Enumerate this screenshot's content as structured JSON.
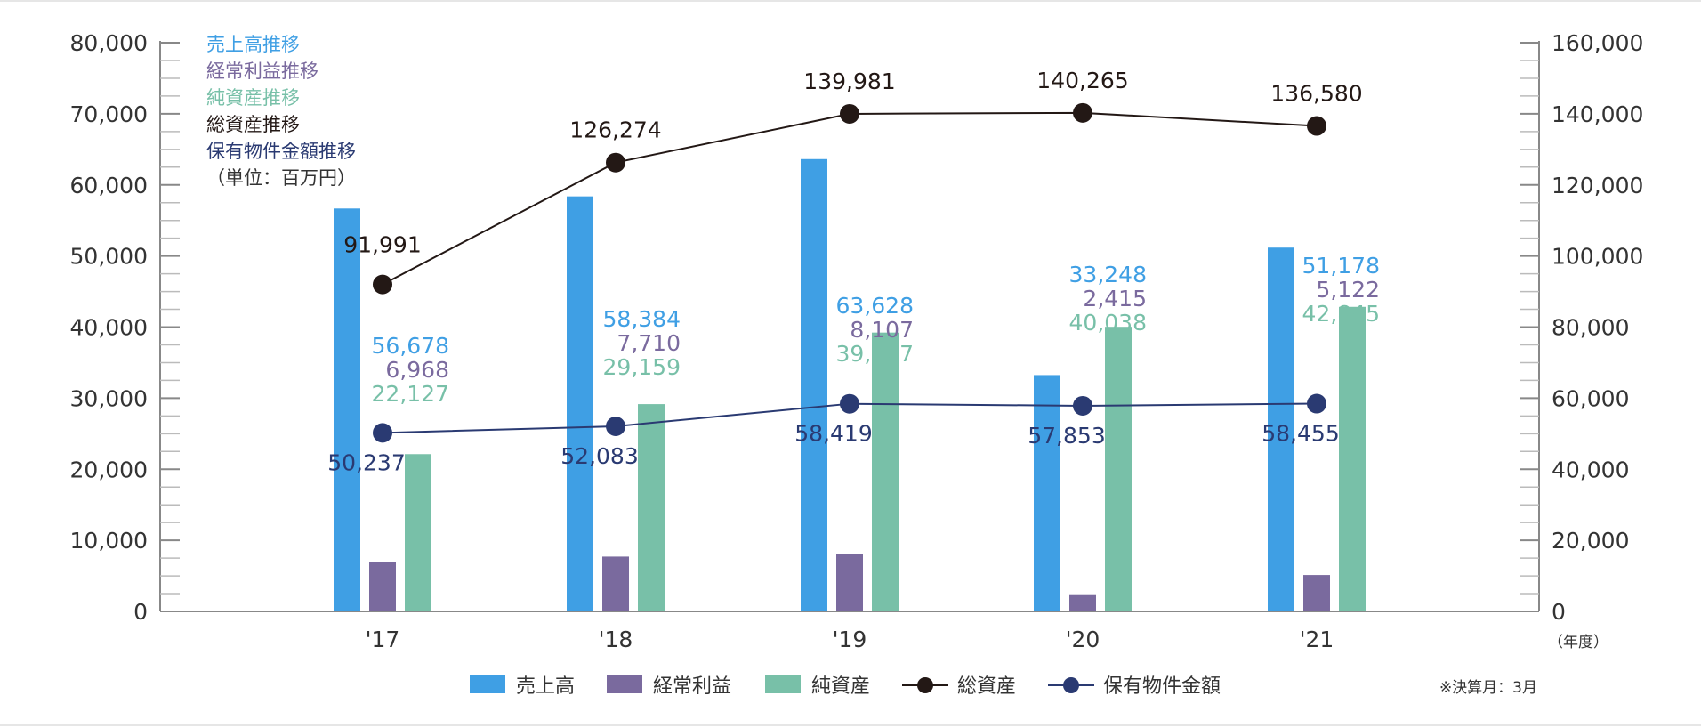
{
  "chart_data": {
    "type": "bar",
    "categories": [
      "'17",
      "'18",
      "'19",
      "'20",
      "'21"
    ],
    "x_unit_label": "（年度）",
    "y_left": {
      "range": [
        0,
        80000
      ],
      "ticks": [
        "0",
        "10,000",
        "20,000",
        "30,000",
        "40,000",
        "50,000",
        "60,000",
        "70,000",
        "80,000"
      ]
    },
    "y_right": {
      "range": [
        0,
        160000
      ],
      "ticks": [
        "0",
        "20,000",
        "40,000",
        "60,000",
        "80,000",
        "100,000",
        "120,000",
        "140,000",
        "160,000"
      ]
    },
    "series": [
      {
        "name": "売上高",
        "kind": "bar",
        "axis": "left",
        "color": "#3f9fe4",
        "values": [
          56678,
          58384,
          63628,
          33248,
          51178
        ],
        "labels": [
          "56,678",
          "58,384",
          "63,628",
          "33,248",
          "51,178"
        ]
      },
      {
        "name": "経常利益",
        "kind": "bar",
        "axis": "left",
        "color": "#7a6a9e",
        "values": [
          6968,
          7710,
          8107,
          2415,
          5122
        ],
        "labels": [
          "6,968",
          "7,710",
          "8,107",
          "2,415",
          "5,122"
        ]
      },
      {
        "name": "純資産",
        "kind": "bar",
        "axis": "left",
        "color": "#78c0a8",
        "values": [
          22127,
          29159,
          39227,
          40038,
          42845
        ],
        "labels": [
          "22,127",
          "29,159",
          "39,227",
          "40,038",
          "42,845"
        ]
      },
      {
        "name": "総資産",
        "kind": "line",
        "axis": "right",
        "color": "#231815",
        "values": [
          91991,
          126274,
          139981,
          140265,
          136580
        ],
        "labels": [
          "91,991",
          "126,274",
          "139,981",
          "140,265",
          "136,580"
        ]
      },
      {
        "name": "保有物件金額",
        "kind": "line",
        "axis": "right",
        "color": "#2a3a72",
        "values": [
          50237,
          52083,
          58419,
          57853,
          58455
        ],
        "labels": [
          "50,237",
          "52,083",
          "58,419",
          "57,853",
          "58,455"
        ]
      }
    ],
    "side_legend": [
      {
        "text": "売上高推移",
        "color": "#3f9fe4"
      },
      {
        "text": "経常利益推移",
        "color": "#7a6a9e"
      },
      {
        "text": "純資産推移",
        "color": "#78c0a8"
      },
      {
        "text": "総資産推移",
        "color": "#231815"
      },
      {
        "text": "保有物件金額推移",
        "color": "#2a3a72"
      },
      {
        "text": "（単位：百万円）",
        "color": "#333333"
      }
    ],
    "footnote": "※決算月：3月",
    "legend_placement": "bottom",
    "grid": false
  }
}
